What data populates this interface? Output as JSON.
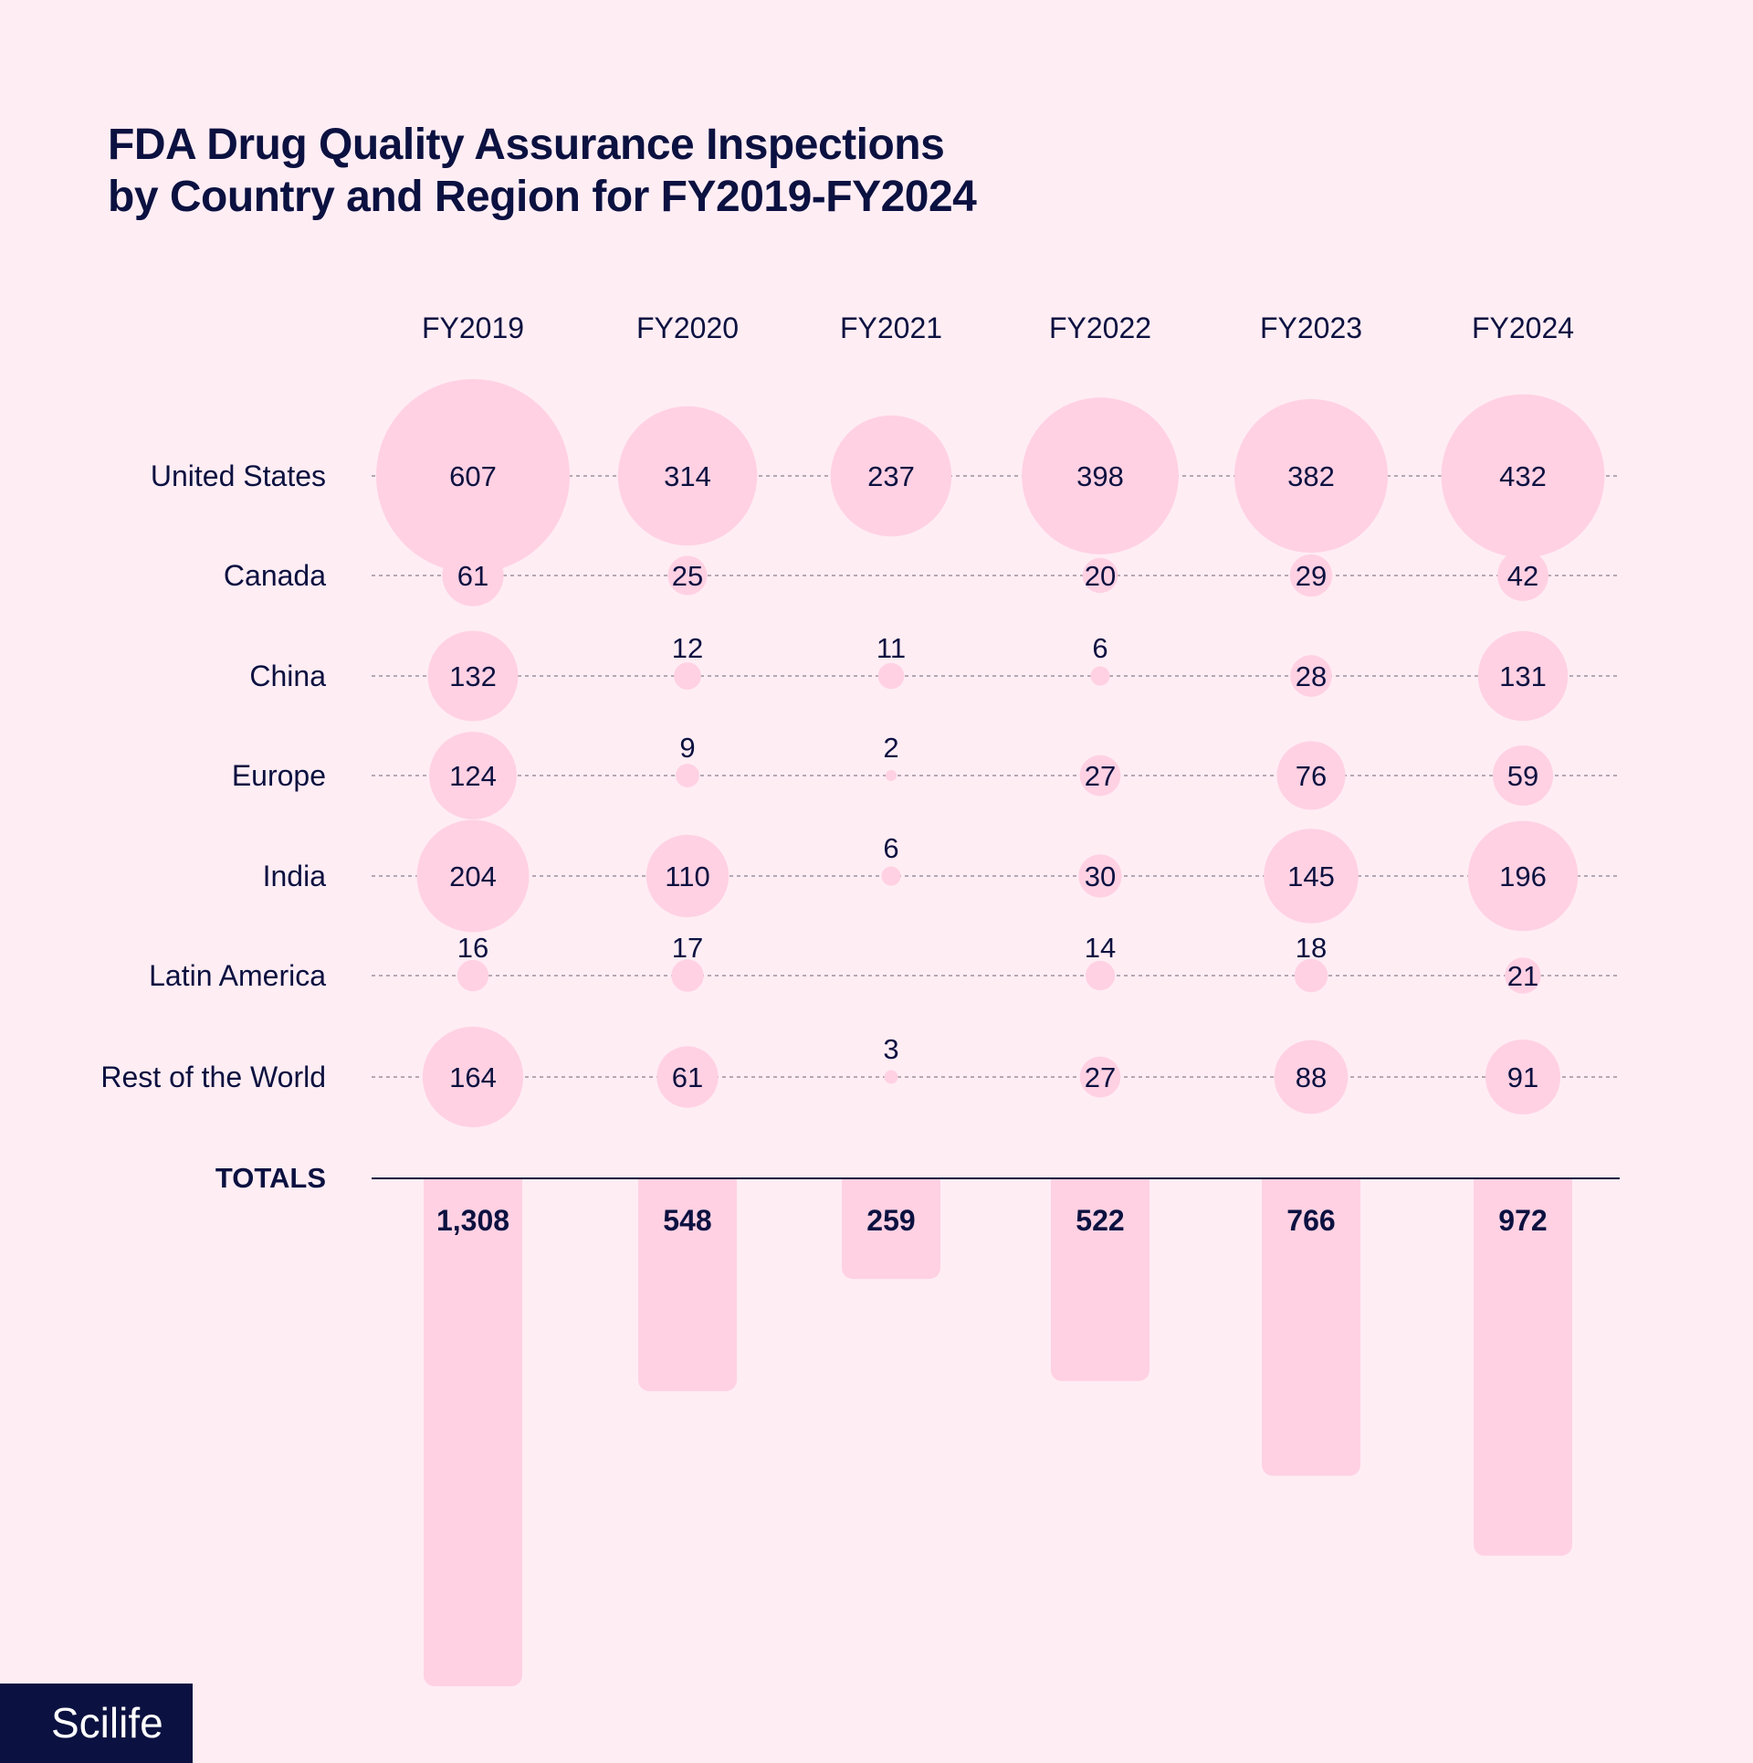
{
  "colors": {
    "background": "#ffedf4",
    "bubble": "#ffd1e3",
    "text": "#0b1140",
    "gridline": "#8a7f88"
  },
  "logo": "Scilife",
  "chart_data": {
    "type": "bubble-matrix with bar totals",
    "title": "FDA Drug Quality Assurance Inspections by Country and Region for FY2019-FY2024",
    "title_lines": [
      "FDA Drug Quality Assurance Inspections",
      "by Country and Region for FY2019-FY2024"
    ],
    "categories": [
      "FY2019",
      "FY2020",
      "FY2021",
      "FY2022",
      "FY2023",
      "FY2024"
    ],
    "series": [
      {
        "name": "United States",
        "values": [
          607,
          314,
          237,
          398,
          382,
          432
        ]
      },
      {
        "name": "Canada",
        "values": [
          61,
          25,
          null,
          20,
          29,
          42
        ]
      },
      {
        "name": "China",
        "values": [
          132,
          12,
          11,
          6,
          28,
          131
        ]
      },
      {
        "name": "Europe",
        "values": [
          124,
          9,
          2,
          27,
          76,
          59
        ]
      },
      {
        "name": "India",
        "values": [
          204,
          110,
          6,
          30,
          145,
          196
        ]
      },
      {
        "name": "Latin America",
        "values": [
          16,
          17,
          null,
          14,
          18,
          21
        ]
      },
      {
        "name": "Rest of the World",
        "values": [
          164,
          61,
          3,
          27,
          88,
          91
        ]
      }
    ],
    "totals_label": "TOTALS",
    "totals": [
      1308,
      548,
      259,
      522,
      766,
      972
    ],
    "totals_display": [
      "1,308",
      "548",
      "259",
      "522",
      "766",
      "972"
    ]
  }
}
